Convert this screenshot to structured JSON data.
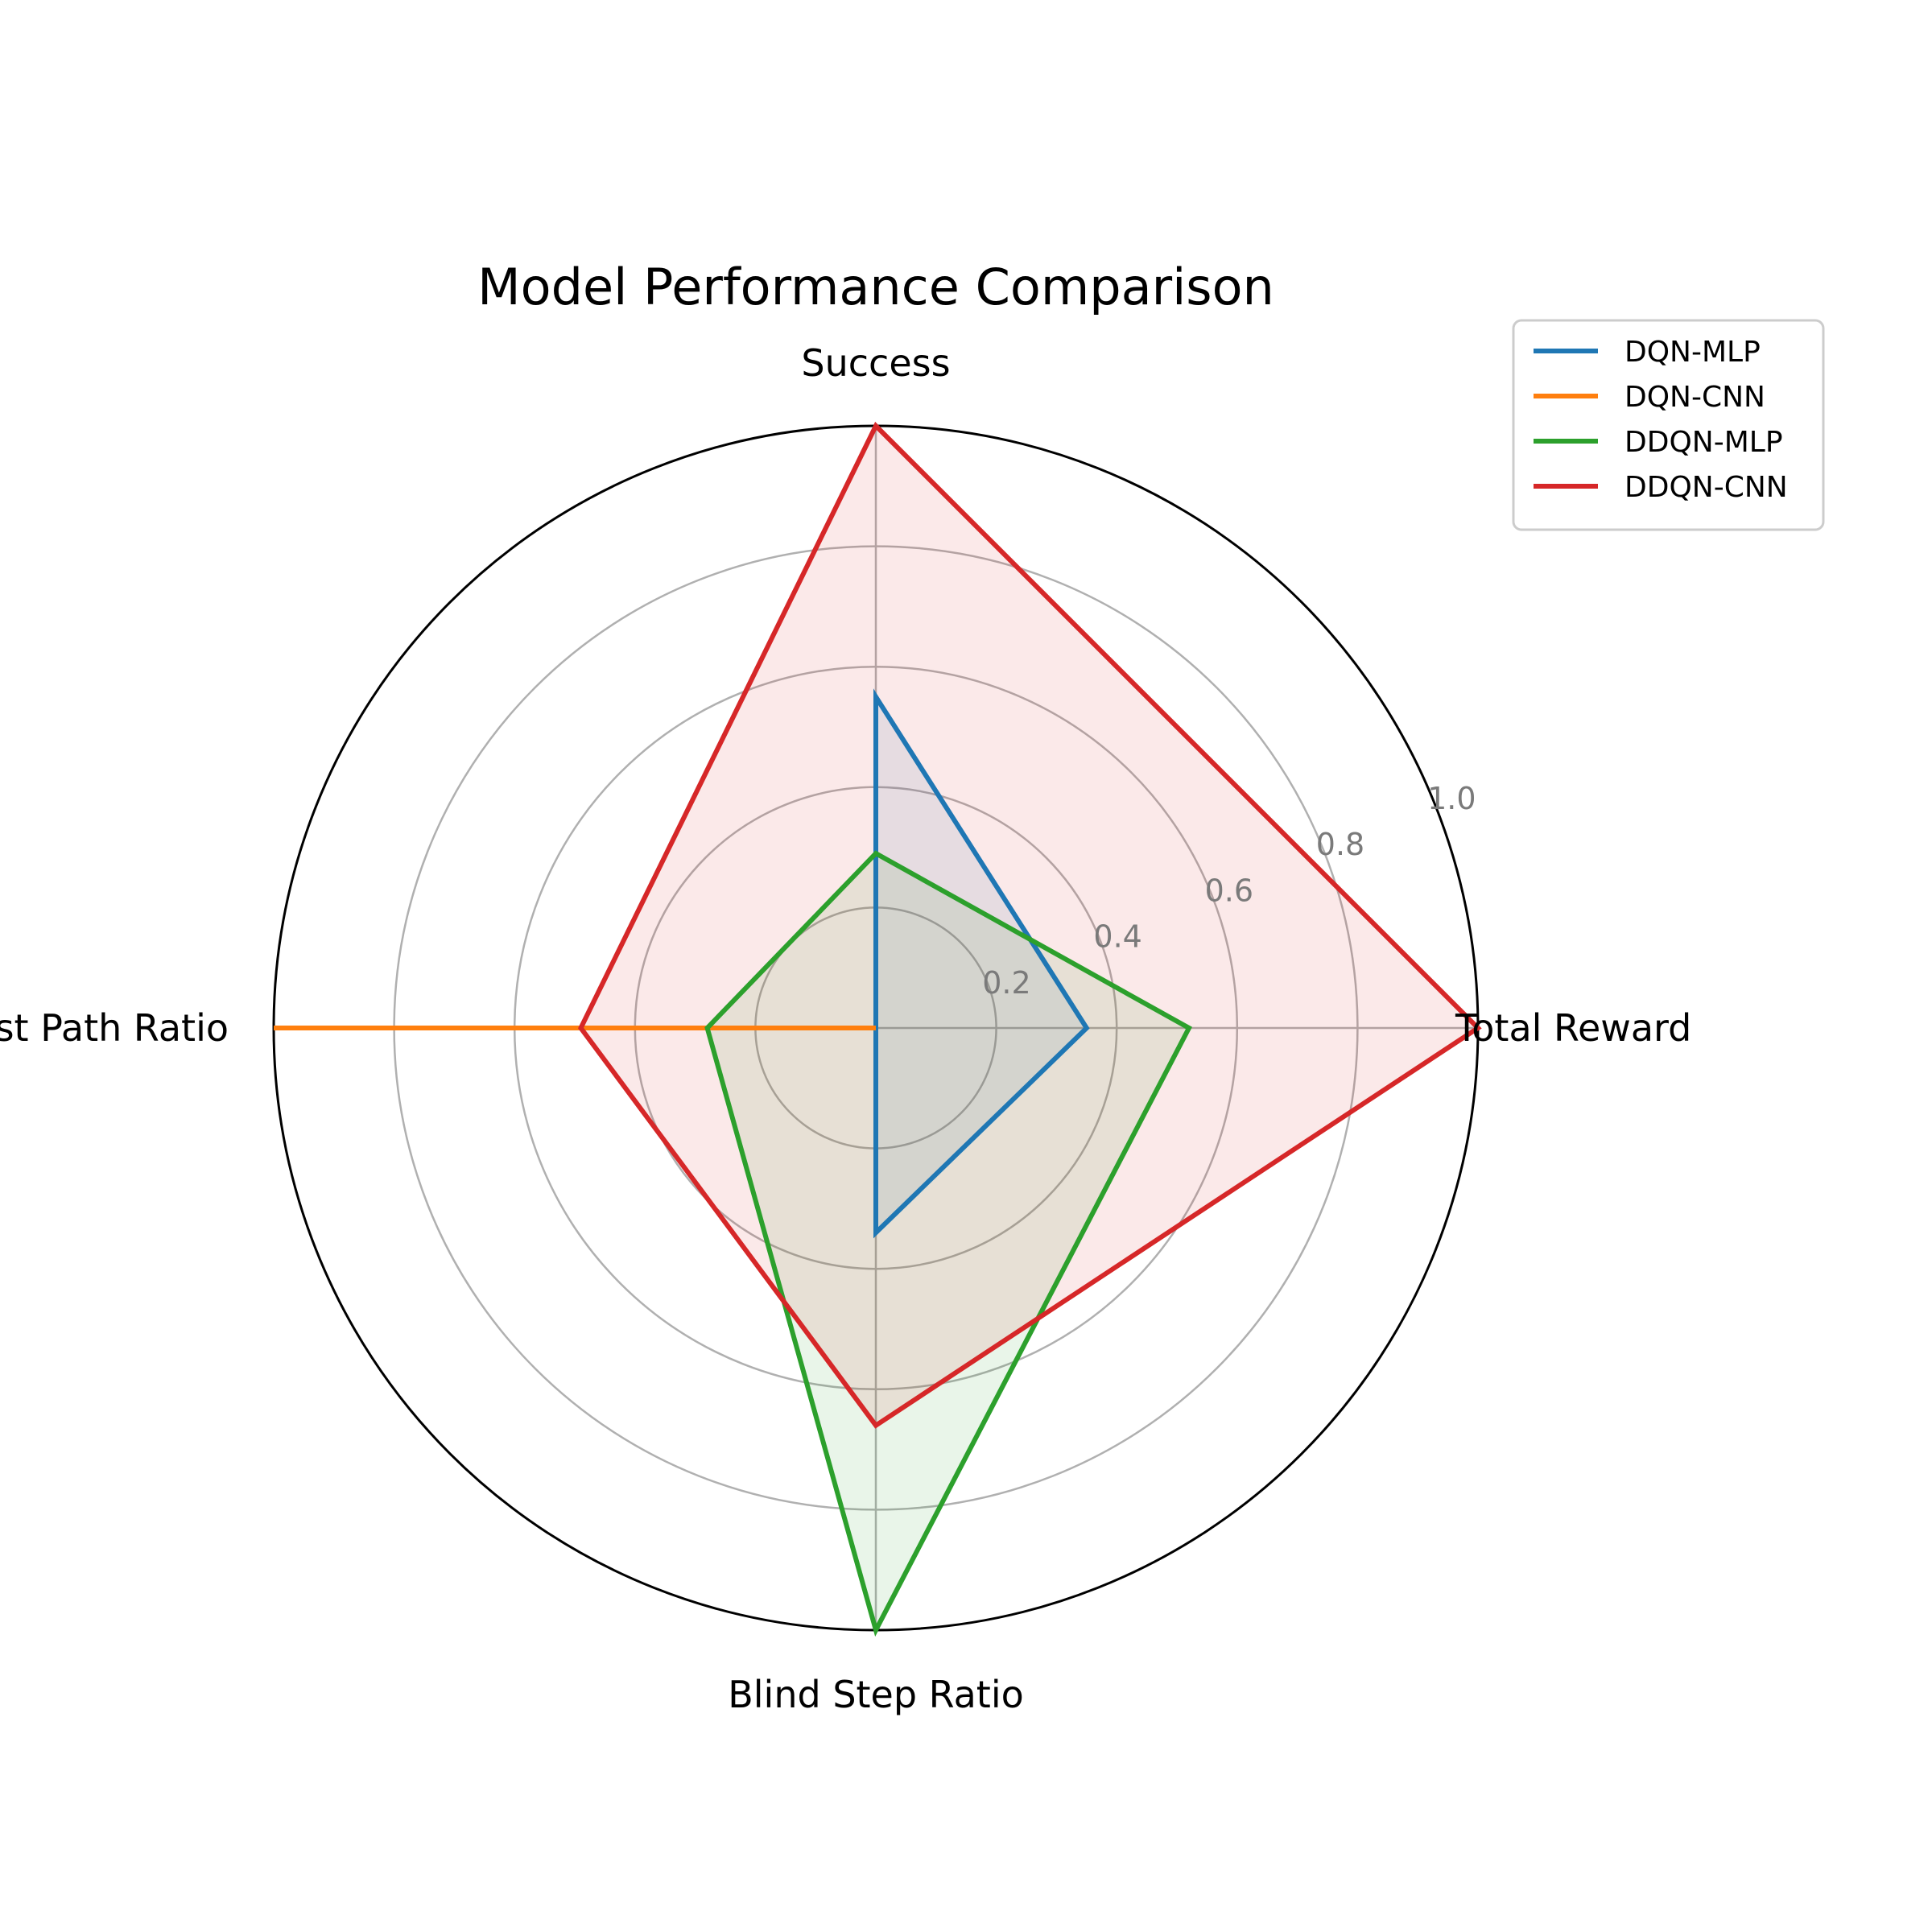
{
  "chart_data": {
    "type": "radar",
    "title": "Model Performance Comparison",
    "axes": [
      "Success",
      "Total Reward",
      "Blind Step Ratio",
      "Shortest Path Ratio"
    ],
    "rlim": [
      0,
      1.0
    ],
    "rticks": [
      0.2,
      0.4,
      0.6,
      0.8,
      1.0
    ],
    "rtick_labels": [
      "0.2",
      "0.4",
      "0.6",
      "0.8",
      "1.0"
    ],
    "grid": true,
    "legend_position": "top-right",
    "series": [
      {
        "name": "DQN-MLP",
        "color": "#1f77b4",
        "values": [
          0.55,
          0.35,
          0.34,
          0.0
        ]
      },
      {
        "name": "DQN-CNN",
        "color": "#ff7f0e",
        "values": [
          0.0,
          0.0,
          0.0,
          1.0
        ]
      },
      {
        "name": "DDQN-MLP",
        "color": "#2ca02c",
        "values": [
          0.29,
          0.52,
          1.0,
          0.28
        ]
      },
      {
        "name": "DDQN-CNN",
        "color": "#d62728",
        "values": [
          1.0,
          1.0,
          0.66,
          0.49
        ]
      }
    ]
  }
}
